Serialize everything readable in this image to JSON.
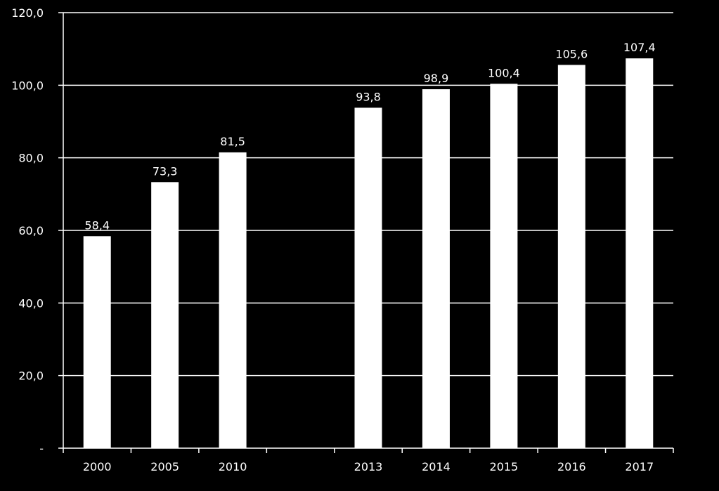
{
  "chart_data": {
    "type": "bar",
    "categories": [
      "2000",
      "2005",
      "2010",
      "",
      "2013",
      "2014",
      "2015",
      "2016",
      "2017"
    ],
    "values": [
      58.4,
      73.3,
      81.5,
      null,
      93.8,
      98.9,
      100.4,
      105.6,
      107.4
    ],
    "value_labels": [
      "58,4",
      "73,3",
      "81,5",
      "",
      "93,8",
      "98,9",
      "100,4",
      "105,6",
      "107,4"
    ],
    "y_ticks": [
      0,
      20,
      40,
      60,
      80,
      100,
      120
    ],
    "y_tick_labels": [
      "-",
      "20,0",
      "40,0",
      "60,0",
      "80,0",
      "100,0",
      "120,0"
    ],
    "ylim": [
      0,
      120
    ],
    "grid": true,
    "title": "",
    "xlabel": "",
    "ylabel": ""
  },
  "colors": {
    "background": "#000000",
    "bar": "#ffffff",
    "grid": "#ffffff",
    "axis": "#ffffff",
    "text": "#ffffff"
  }
}
